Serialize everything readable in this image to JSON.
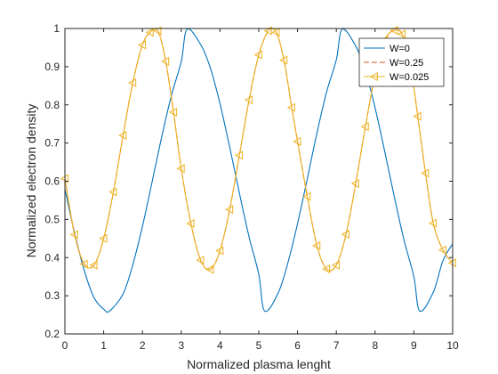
{
  "chart_data": {
    "type": "line",
    "xlabel": "Normalized plasma lenght",
    "ylabel": "Normalized electron density",
    "xlim": [
      0,
      10
    ],
    "ylim": [
      0.2,
      1
    ],
    "xticks": [
      0,
      1,
      2,
      3,
      4,
      5,
      6,
      7,
      8,
      9,
      10
    ],
    "yticks": [
      0.2,
      0.3,
      0.4,
      0.5,
      0.6,
      0.7,
      0.8,
      0.9,
      1
    ],
    "grid": false,
    "legend_position": "top-right",
    "series": [
      {
        "name": "W=0",
        "color": "#0072bd",
        "style": "solid",
        "marker": "none",
        "x": [
          0,
          0.25,
          0.5,
          0.75,
          1.0,
          1.15,
          1.5,
          1.75,
          2.0,
          2.25,
          2.5,
          2.75,
          3.0,
          3.15,
          3.5,
          3.75,
          4.0,
          4.25,
          4.5,
          4.75,
          5.0,
          5.15,
          5.5,
          5.75,
          6.0,
          6.25,
          6.5,
          6.75,
          7.0,
          7.15,
          7.5,
          7.75,
          8.0,
          8.25,
          8.5,
          8.75,
          9.0,
          9.15,
          9.5,
          9.75,
          10.0
        ],
        "y": [
          0.579,
          0.464,
          0.366,
          0.295,
          0.265,
          0.26,
          0.305,
          0.381,
          0.482,
          0.599,
          0.718,
          0.826,
          0.913,
          0.998,
          0.958,
          0.897,
          0.803,
          0.689,
          0.569,
          0.454,
          0.356,
          0.26,
          0.307,
          0.386,
          0.489,
          0.606,
          0.726,
          0.834,
          0.918,
          0.998,
          0.954,
          0.889,
          0.792,
          0.677,
          0.557,
          0.444,
          0.35,
          0.26,
          0.309,
          0.392,
          0.436
        ]
      },
      {
        "name": "W=0.25",
        "color": "#d95319",
        "style": "dashed",
        "marker": "none",
        "x": [
          0,
          0.25,
          0.5,
          0.75,
          1.0,
          1.25,
          1.5,
          1.75,
          2.0,
          2.2,
          2.4,
          2.6,
          2.8,
          3.0,
          3.25,
          3.5,
          3.75,
          4.0,
          4.25,
          4.5,
          4.75,
          5.0,
          5.25,
          5.45,
          5.65,
          5.85,
          6.0,
          6.25,
          6.5,
          6.75,
          7.0,
          7.25,
          7.5,
          7.75,
          8.0,
          8.25,
          8.5,
          8.7,
          8.9,
          9.1,
          9.3,
          9.5,
          9.75,
          10.0
        ],
        "y": [
          0.607,
          0.46,
          0.383,
          0.38,
          0.45,
          0.572,
          0.72,
          0.858,
          0.957,
          0.99,
          0.994,
          0.914,
          0.781,
          0.633,
          0.489,
          0.393,
          0.369,
          0.418,
          0.526,
          0.668,
          0.813,
          0.931,
          0.994,
          0.99,
          0.917,
          0.793,
          0.704,
          0.56,
          0.431,
          0.37,
          0.38,
          0.461,
          0.594,
          0.743,
          0.879,
          0.97,
          0.995,
          0.985,
          0.912,
          0.77,
          0.621,
          0.49,
          0.42,
          0.386
        ]
      },
      {
        "name": "W=0.025",
        "color": "#edb120",
        "style": "solid",
        "marker": "triangle-left",
        "x": [
          0,
          0.25,
          0.5,
          0.75,
          1.0,
          1.25,
          1.5,
          1.75,
          2.0,
          2.2,
          2.4,
          2.6,
          2.8,
          3.0,
          3.25,
          3.5,
          3.75,
          4.0,
          4.25,
          4.5,
          4.75,
          5.0,
          5.25,
          5.45,
          5.65,
          5.85,
          6.0,
          6.25,
          6.5,
          6.75,
          7.0,
          7.25,
          7.5,
          7.75,
          8.0,
          8.25,
          8.5,
          8.7,
          8.9,
          9.1,
          9.3,
          9.5,
          9.75,
          10.0
        ],
        "y": [
          0.607,
          0.46,
          0.383,
          0.38,
          0.45,
          0.572,
          0.72,
          0.858,
          0.957,
          0.99,
          0.994,
          0.914,
          0.781,
          0.633,
          0.489,
          0.393,
          0.369,
          0.418,
          0.526,
          0.668,
          0.813,
          0.931,
          0.994,
          0.99,
          0.917,
          0.793,
          0.704,
          0.56,
          0.431,
          0.37,
          0.38,
          0.461,
          0.594,
          0.743,
          0.879,
          0.97,
          0.995,
          0.985,
          0.912,
          0.77,
          0.621,
          0.49,
          0.42,
          0.386
        ]
      }
    ]
  }
}
